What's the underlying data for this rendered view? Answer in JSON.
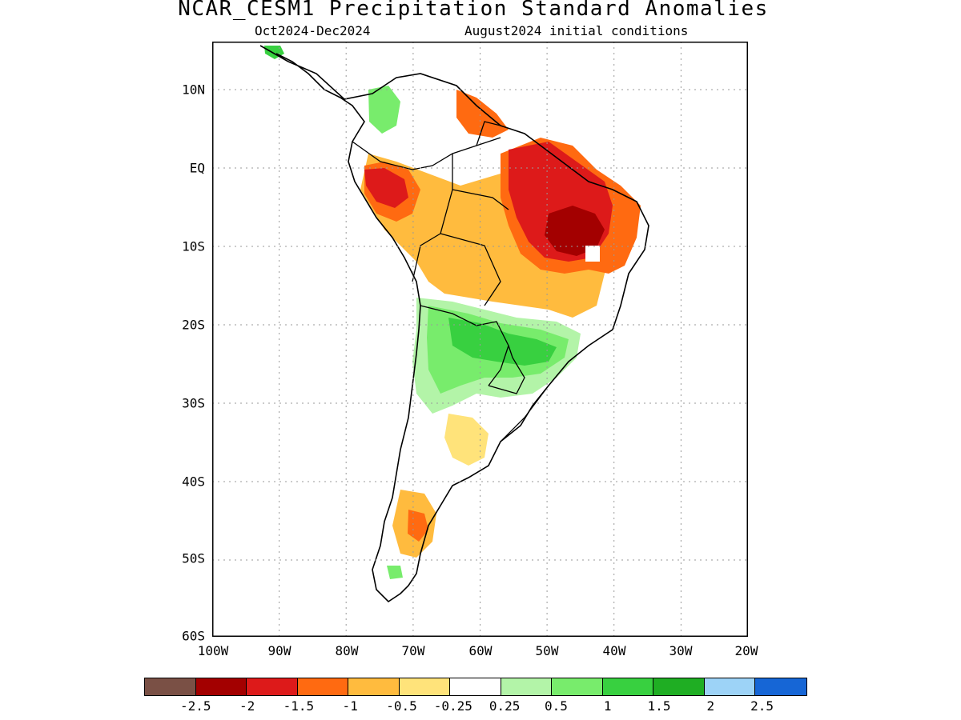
{
  "header": {
    "title": "NCAR_CESM1 Precipitation Standard Anomalies",
    "period": "Oct2024-Dec2024",
    "init": "August2024 initial conditions"
  },
  "map": {
    "lat_labels": [
      "10N",
      "EQ",
      "10S",
      "20S",
      "30S",
      "40S",
      "50S",
      "60S"
    ],
    "lon_labels": [
      "100W",
      "90W",
      "80W",
      "70W",
      "60W",
      "50W",
      "40W",
      "30W",
      "20W"
    ],
    "extent": {
      "lon": [
        -100,
        -20
      ],
      "lat": [
        -60,
        16
      ]
    }
  },
  "colorbar": {
    "colors": [
      "#7a5045",
      "#a30000",
      "#dd1a1a",
      "#ff6a11",
      "#ffbb3e",
      "#ffe37a",
      "#ffffff",
      "#b3f4a8",
      "#78ec6c",
      "#38d040",
      "#1fae23",
      "#9dd3f7",
      "#1666d6"
    ],
    "labels": [
      "-2.5",
      "-2",
      "-1.5",
      "-1",
      "-0.5",
      "-0.25",
      "0.25",
      "0.5",
      "1",
      "1.5",
      "2",
      "2.5"
    ]
  }
}
